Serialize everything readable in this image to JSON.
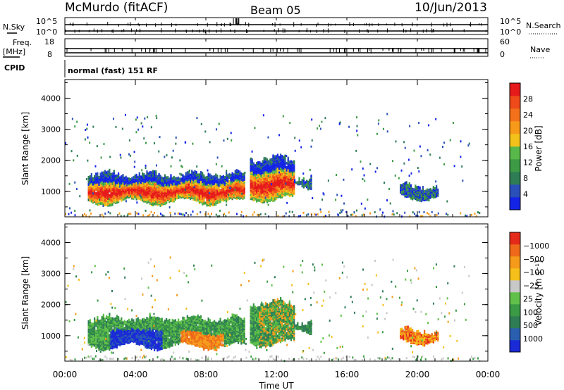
{
  "header": {
    "station": "McMurdo (fitACF)",
    "beam": "Beam 05",
    "date": "10/Jun/2013"
  },
  "top_panels": {
    "nsky": {
      "label": "N.Sky",
      "left_ticks": [
        "10^5",
        "10^0"
      ],
      "right_ticks": [
        "10^5",
        "10^0"
      ],
      "right_label": "N.Search"
    },
    "freq": {
      "label_line1": "Freq.",
      "label_line2": "[MHz]",
      "left_ticks": [
        "18",
        "8"
      ],
      "right_ticks": [
        "60",
        "0"
      ],
      "right_label": "Nave"
    },
    "cpid": {
      "label": "CPID",
      "text": "normal (fast) 151 RF"
    }
  },
  "chart_data": [
    {
      "type": "heatmap",
      "name": "power",
      "ylabel": "Slant Range [km]",
      "yticks": [
        1000,
        2000,
        3000,
        4000
      ],
      "ylim": [
        180,
        4600
      ],
      "xlim": [
        0,
        24
      ],
      "colorbar": {
        "label": "Power [dB]",
        "ticks": [
          "4",
          "8",
          "12",
          "16",
          "20",
          "24",
          "28"
        ],
        "colors": [
          "#1424e6",
          "#2a4fb8",
          "#2f7d55",
          "#3d9a45",
          "#58b84a",
          "#f2c21a",
          "#f79a1a",
          "#f4711c",
          "#ee4a1a",
          "#e61a1a"
        ]
      },
      "blobs": [
        {
          "t0": 1.3,
          "t1": 10.2,
          "r0": 600,
          "r1": 1700,
          "level": "mixed"
        },
        {
          "t0": 10.5,
          "t1": 13.0,
          "r0": 700,
          "r1": 2200,
          "level": "mixed"
        },
        {
          "t0": 13.0,
          "t1": 14.0,
          "r0": 1100,
          "r1": 1600,
          "level": "low"
        },
        {
          "t0": 19.0,
          "t1": 21.2,
          "r0": 750,
          "r1": 1300,
          "level": "low"
        }
      ]
    },
    {
      "type": "heatmap",
      "name": "velocity",
      "ylabel": "Slant Range [km]",
      "yticks": [
        1000,
        2000,
        3000,
        4000
      ],
      "ylim": [
        180,
        4600
      ],
      "xlim": [
        0,
        24
      ],
      "xticks": [
        "00:00",
        "04:00",
        "08:00",
        "12:00",
        "16:00",
        "20:00",
        "00:00"
      ],
      "xlabel": "Time UT",
      "colorbar": {
        "label": "Velocity [m s⁻¹]",
        "ticks": [
          "1000",
          "500",
          "100",
          "25",
          "−25",
          "−100",
          "−500",
          "−1000"
        ],
        "colors": [
          "#1a2ad6",
          "#2a5fb0",
          "#2f7d55",
          "#3a9a45",
          "#60c04a",
          "#c8c8c8",
          "#f5c01a",
          "#f59a1a",
          "#ee6a1a",
          "#e62a1a"
        ]
      },
      "blobs": [
        {
          "t0": 1.3,
          "t1": 10.2,
          "r0": 600,
          "r1": 1700,
          "level": "mixed"
        },
        {
          "t0": 10.5,
          "t1": 13.0,
          "r0": 700,
          "r1": 2200,
          "level": "mixed"
        },
        {
          "t0": 13.0,
          "t1": 14.0,
          "r0": 1100,
          "r1": 1600,
          "level": "neutral"
        },
        {
          "t0": 19.0,
          "t1": 21.2,
          "r0": 750,
          "r1": 1300,
          "level": "neg"
        }
      ]
    }
  ]
}
